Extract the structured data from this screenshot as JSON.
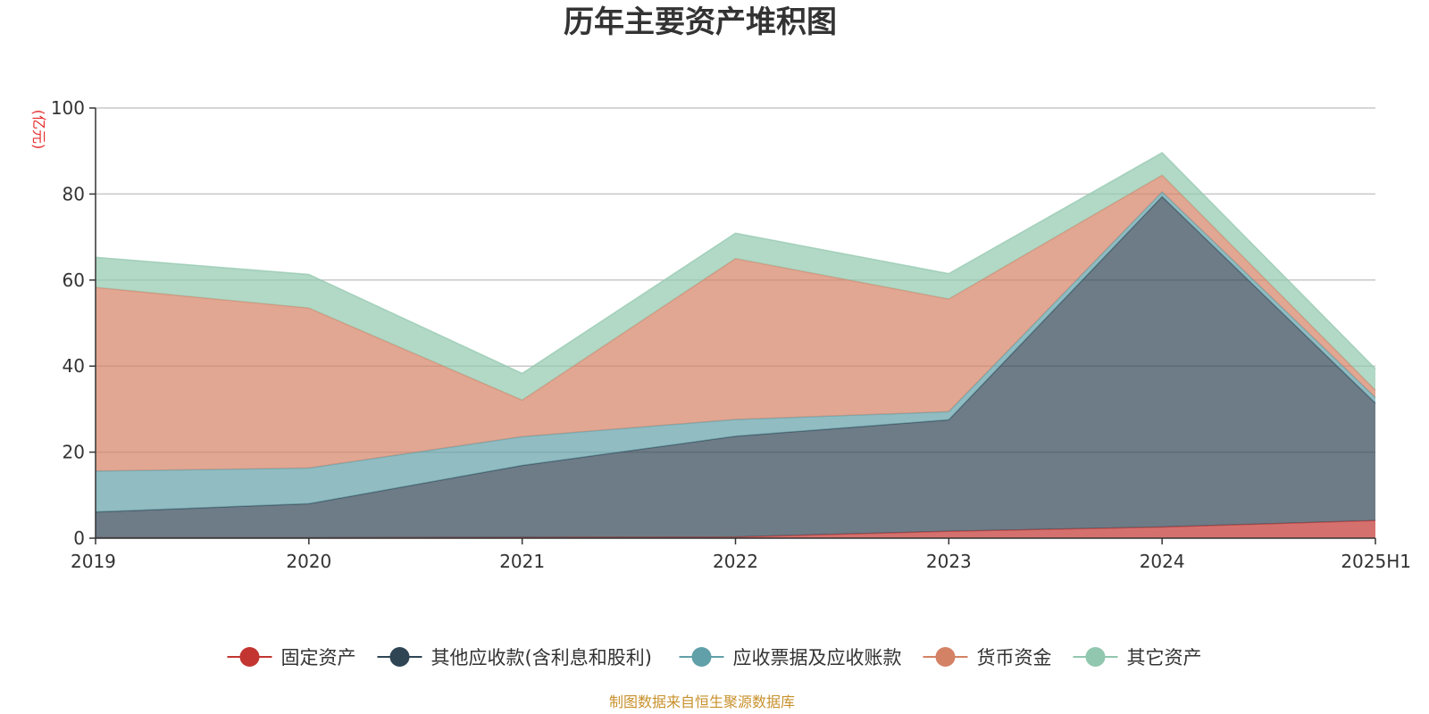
{
  "chart_data": {
    "type": "area",
    "stacked": true,
    "title": "历年主要资产堆积图",
    "y_unit": "(亿元)",
    "ylim": [
      0,
      100
    ],
    "y_ticks": [
      0,
      20,
      40,
      60,
      80,
      100
    ],
    "grid": true,
    "legend_position": "bottom",
    "categories": [
      "2019",
      "2020",
      "2021",
      "2022",
      "2023",
      "2024",
      "2025H1"
    ],
    "series": [
      {
        "name": "固定资产",
        "color": "#c23531",
        "values": [
          0.1,
          0.1,
          0.2,
          0.3,
          1.6,
          2.6,
          4.1
        ]
      },
      {
        "name": "其他应收款(含利息和股利)",
        "color": "#2f4554",
        "values": [
          6.0,
          7.9,
          16.7,
          23.4,
          25.9,
          76.8,
          27.3
        ]
      },
      {
        "name": "应收票据及应收账款",
        "color": "#61a0a8",
        "values": [
          9.5,
          8.3,
          6.7,
          3.9,
          1.9,
          1.1,
          1.3
        ]
      },
      {
        "name": "货币资金",
        "color": "#d48265",
        "values": [
          42.7,
          37.2,
          8.5,
          37.4,
          26.2,
          3.9,
          1.7
        ]
      },
      {
        "name": "其它资产",
        "color": "#91c7ae",
        "values": [
          7.0,
          7.8,
          6.2,
          5.9,
          5.9,
          5.2,
          5.0
        ]
      }
    ],
    "source_note": "制图数据来自恒生聚源数据库",
    "source_color": "#c8912c",
    "unit_color": "#e62e2e"
  }
}
